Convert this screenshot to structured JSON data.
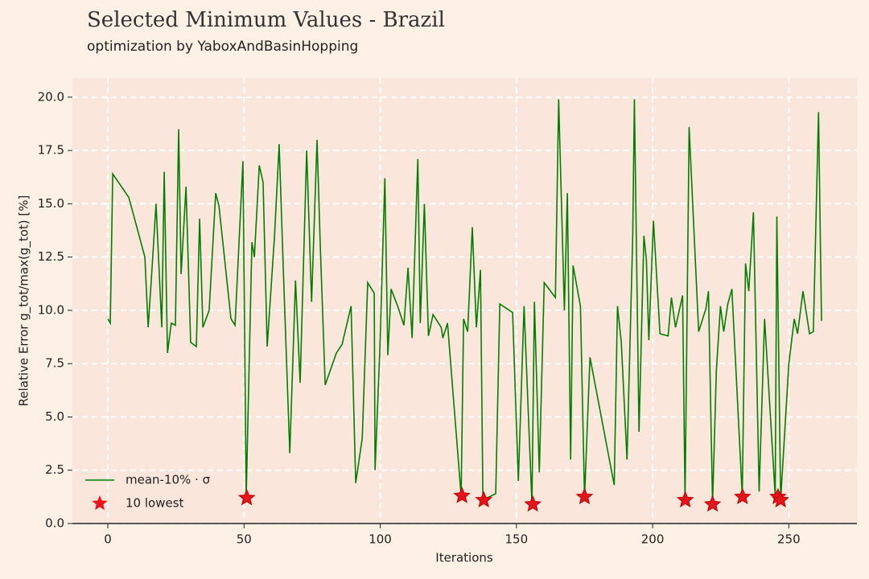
{
  "chart_data": {
    "type": "line",
    "title": "Selected Minimum Values - Brazil",
    "subtitle": "optimization by YaboxAndBasinHopping",
    "x_label": "Iterations",
    "y_label": "Relative Error g_tot/max(g_tot) [%]",
    "xlim": [
      -13,
      275
    ],
    "ylim": [
      0,
      20.9
    ],
    "xticks": [
      0,
      50,
      100,
      150,
      200,
      250
    ],
    "yticks": [
      {
        "value": 0,
        "label": "0.0"
      },
      2.5,
      {
        "value": 5,
        "label": "5.0"
      },
      7.5,
      {
        "value": 10,
        "label": "10.0"
      },
      12.5,
      {
        "value": 15,
        "label": "15.0"
      },
      17.5,
      {
        "value": 20,
        "label": "20.0"
      }
    ],
    "grid": true,
    "legend": "lower left",
    "series": [
      {
        "name": "mean-10% · σ",
        "type": "line",
        "color": "#008000",
        "x": [
          0,
          0.9,
          1.8,
          7.7,
          13.6,
          14.8,
          16,
          17.7,
          19.8,
          20.7,
          21.9,
          23.3,
          24.8,
          26,
          26.9,
          28.7,
          30.4,
          32.5,
          33.7,
          34.9,
          37.2,
          39.6,
          40.8,
          45.2,
          46.7,
          49.6,
          50.8,
          52.9,
          53.8,
          55.6,
          57,
          58.5,
          61.2,
          62.9,
          64.4,
          66.8,
          68.9,
          70.6,
          73,
          74.8,
          76.8,
          78,
          79.8,
          83.9,
          86,
          89.3,
          91,
          93.4,
          95.4,
          97.8,
          98.1,
          99.9,
          101.7,
          102.8,
          104,
          106.4,
          108.7,
          110.2,
          111.7,
          113.8,
          114.7,
          116.2,
          117.7,
          119.4,
          122.4,
          123,
          124.7,
          129.7,
          130.6,
          132.1,
          133.8,
          135.3,
          136.8,
          137.7,
          142.4,
          143.9,
          148.6,
          150.7,
          152.8,
          155.7,
          156.6,
          158.4,
          160.2,
          164.3,
          165.5,
          167.6,
          168.7,
          169.9,
          170.8,
          173.5,
          175,
          177,
          185.9,
          187.1,
          188.5,
          190.6,
          192.7,
          193.3,
          195,
          196.8,
          197.7,
          198.6,
          200.3,
          202.7,
          205.7,
          206.9,
          208.4,
          211,
          211.9,
          213.4,
          216.9,
          219.6,
          220.5,
          222,
          223.4,
          224.9,
          226.1,
          227.6,
          229.1,
          232.9,
          234.1,
          235.3,
          237,
          239.1,
          241.1,
          245,
          245.6,
          247,
          250,
          252,
          253.2,
          255.2,
          257.6,
          259,
          260.9,
          262
        ],
        "values": [
          9.6,
          9.4,
          16.4,
          15.3,
          12.5,
          9.2,
          11.5,
          15.0,
          9.2,
          16.5,
          8.0,
          9.4,
          9.3,
          18.5,
          11.7,
          15.8,
          8.5,
          8.3,
          14.3,
          9.2,
          10.0,
          15.5,
          14.9,
          9.6,
          9.3,
          17.0,
          1.3,
          13.2,
          12.5,
          16.8,
          16.0,
          8.3,
          13.5,
          17.8,
          12.0,
          3.3,
          11.4,
          6.6,
          17.5,
          10.4,
          18.0,
          13.0,
          6.5,
          8.0,
          8.4,
          10.2,
          1.9,
          4.0,
          11.3,
          10.8,
          2.5,
          8.3,
          16.2,
          7.9,
          11.0,
          10.2,
          9.3,
          12.0,
          8.7,
          17.1,
          9.4,
          15.0,
          8.8,
          9.8,
          9.2,
          8.7,
          9.4,
          1.3,
          9.6,
          9.0,
          13.9,
          9.2,
          11.9,
          1.1,
          1.4,
          10.3,
          9.9,
          2.0,
          10.2,
          0.9,
          10.4,
          2.4,
          11.3,
          10.6,
          19.9,
          10.0,
          15.5,
          3.0,
          12.1,
          10.2,
          1.2,
          7.8,
          1.8,
          10.2,
          8.5,
          3.0,
          13.5,
          19.9,
          4.3,
          13.5,
          12.4,
          8.6,
          14.2,
          8.9,
          8.8,
          10.6,
          9.2,
          10.7,
          1.1,
          18.6,
          9.0,
          10.1,
          10.9,
          0.9,
          7.2,
          10.2,
          9.0,
          10.3,
          11.0,
          1.3,
          12.2,
          10.9,
          14.6,
          1.5,
          9.6,
          1.3,
          14.4,
          1.1,
          7.5,
          9.6,
          8.9,
          10.9,
          8.9,
          9.0,
          19.3,
          9.5
        ]
      },
      {
        "name": "10 lowest",
        "type": "scatter",
        "color": "#e8141c",
        "x": [
          51,
          130,
          138,
          156,
          175,
          212,
          222,
          233,
          246,
          247
        ],
        "values": [
          1.2,
          1.3,
          1.1,
          0.9,
          1.25,
          1.1,
          0.9,
          1.25,
          1.25,
          1.1
        ]
      }
    ]
  }
}
